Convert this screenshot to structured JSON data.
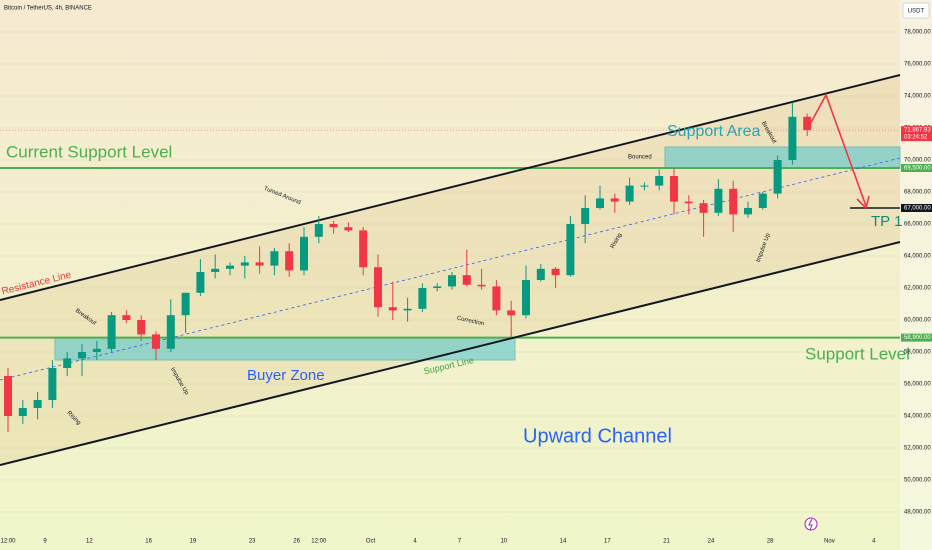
{
  "chart_data": {
    "type": "candlestick",
    "title": "Bitcoin / TetherUS, 4h, BINANCE",
    "currency": "USDT",
    "categories": [
      "12:00",
      null,
      null,
      "9",
      null,
      null,
      "12",
      null,
      null,
      null,
      "16",
      null,
      null,
      "19",
      null,
      null,
      null,
      "23",
      null,
      null,
      "26",
      "12:00",
      null,
      null,
      null,
      "Oct",
      null,
      null,
      "4",
      null,
      null,
      "7",
      null,
      null,
      "10",
      null,
      null,
      null,
      "14",
      null,
      null,
      "17",
      null,
      null,
      null,
      "21",
      null,
      null,
      "24",
      null,
      null,
      null,
      "28",
      null,
      null,
      null,
      "Nov",
      null,
      null,
      "4"
    ],
    "series": [
      {
        "up_color": "#089981",
        "down_color": "#f23645",
        "open": [
          56500,
          54000,
          54500,
          55000,
          57000,
          57600,
          58000,
          58200,
          60300,
          60000,
          59100,
          58200,
          60300,
          61700,
          63000,
          63200,
          63400,
          63600,
          63400,
          64300,
          63100,
          65200,
          66000,
          65800,
          65600,
          63300,
          60800,
          60600,
          60700,
          62000,
          62100,
          62800,
          62200,
          62100,
          60600,
          60300,
          62500,
          63200,
          62800,
          66000,
          67000,
          67600,
          67400,
          68400,
          68400,
          69000,
          67400,
          67300,
          66700,
          68200,
          66600,
          67000,
          67900,
          70000,
          72700,
          null,
          null,
          null,
          null,
          null
        ],
        "high": [
          57000,
          55000,
          55500,
          57500,
          58000,
          58500,
          58700,
          60500,
          60600,
          60300,
          59300,
          61300,
          61700,
          63800,
          64100,
          63600,
          64000,
          64600,
          64500,
          64800,
          65800,
          66500,
          66200,
          66100,
          65800,
          64100,
          62400,
          61400,
          62300,
          62300,
          63000,
          64400,
          63200,
          62500,
          61200,
          63400,
          63500,
          63300,
          66500,
          67800,
          68400,
          67900,
          68900,
          68600,
          69400,
          69500,
          67800,
          67500,
          68800,
          68700,
          67400,
          68000,
          70300,
          73600,
          72900,
          null,
          null,
          null,
          null,
          null
        ],
        "low": [
          53000,
          53500,
          53800,
          54500,
          56500,
          56500,
          57500,
          58000,
          59800,
          58700,
          57500,
          58000,
          59200,
          61500,
          62600,
          62800,
          62600,
          62900,
          62800,
          62700,
          62800,
          64800,
          65400,
          65500,
          62800,
          60200,
          60000,
          59900,
          60500,
          61800,
          61900,
          62100,
          61900,
          60300,
          58900,
          60100,
          62400,
          62000,
          62700,
          64800,
          66900,
          66700,
          67200,
          68100,
          68100,
          66600,
          66600,
          65200,
          66500,
          65500,
          66400,
          66900,
          67600,
          69700,
          71500,
          null,
          null,
          null,
          null,
          null
        ],
        "close": [
          54000,
          54500,
          55000,
          57000,
          57600,
          58000,
          58200,
          60300,
          60000,
          59100,
          58200,
          60300,
          61700,
          63000,
          63200,
          63400,
          63600,
          63400,
          64300,
          63100,
          65200,
          66000,
          65800,
          65600,
          63300,
          60800,
          60600,
          60700,
          62000,
          62100,
          62800,
          62200,
          62100,
          60600,
          60300,
          62500,
          63200,
          62800,
          66000,
          67000,
          67600,
          67400,
          68400,
          68400,
          69000,
          67400,
          67300,
          66700,
          68200,
          66600,
          67000,
          67900,
          70000,
          72700,
          71867.93,
          null,
          null,
          null,
          null,
          null
        ]
      }
    ],
    "ylim": [
      46875,
      80000
    ],
    "yticks": [
      {
        "value": 48000,
        "label": "48,000.00"
      },
      {
        "value": 50000,
        "label": "50,000.00"
      },
      {
        "value": 52000,
        "label": "52,000.00"
      },
      {
        "value": 54000,
        "label": "54,000.00"
      },
      {
        "value": 56000,
        "label": "56,000.00"
      },
      {
        "value": 58000,
        "label": "58,000.00"
      },
      {
        "value": 60000,
        "label": "60,000.00"
      },
      {
        "value": 62000,
        "label": "62,000.00"
      },
      {
        "value": 64000,
        "label": "64,000.00"
      },
      {
        "value": 66000,
        "label": "66,000.00"
      },
      {
        "value": 68000,
        "label": "68,000.00"
      },
      {
        "value": 70000,
        "label": "70,000.00"
      },
      {
        "value": 72000,
        "label": "72,000.00"
      },
      {
        "value": 74000,
        "label": "74,000.00"
      },
      {
        "value": 76000,
        "label": "76,000.00"
      },
      {
        "value": 78000,
        "label": "78,000.00"
      }
    ],
    "price_tags": [
      {
        "value": 71867.93,
        "label": "71,867.93",
        "countdown": "03:24:52",
        "color": "#f23645"
      },
      {
        "value": 69500,
        "label": "69,500.00",
        "color": "#4caf50"
      },
      {
        "value": 67000,
        "label": "67,000.00",
        "color": "#131722"
      },
      {
        "value": 58900,
        "label": "58,900.00",
        "color": "#4caf50"
      }
    ],
    "annotations": [
      "Current Support Level",
      "Resistance Line",
      "Breakout",
      "Impulse Up",
      "Rising",
      "Turned Around",
      "Buyer Zone",
      "Support Line",
      "Correction",
      "Upward Channel",
      "Bounced",
      "Rising",
      "Support Area",
      "Breakout",
      "Impulse Up",
      "TP 1",
      "Support Level"
    ]
  }
}
